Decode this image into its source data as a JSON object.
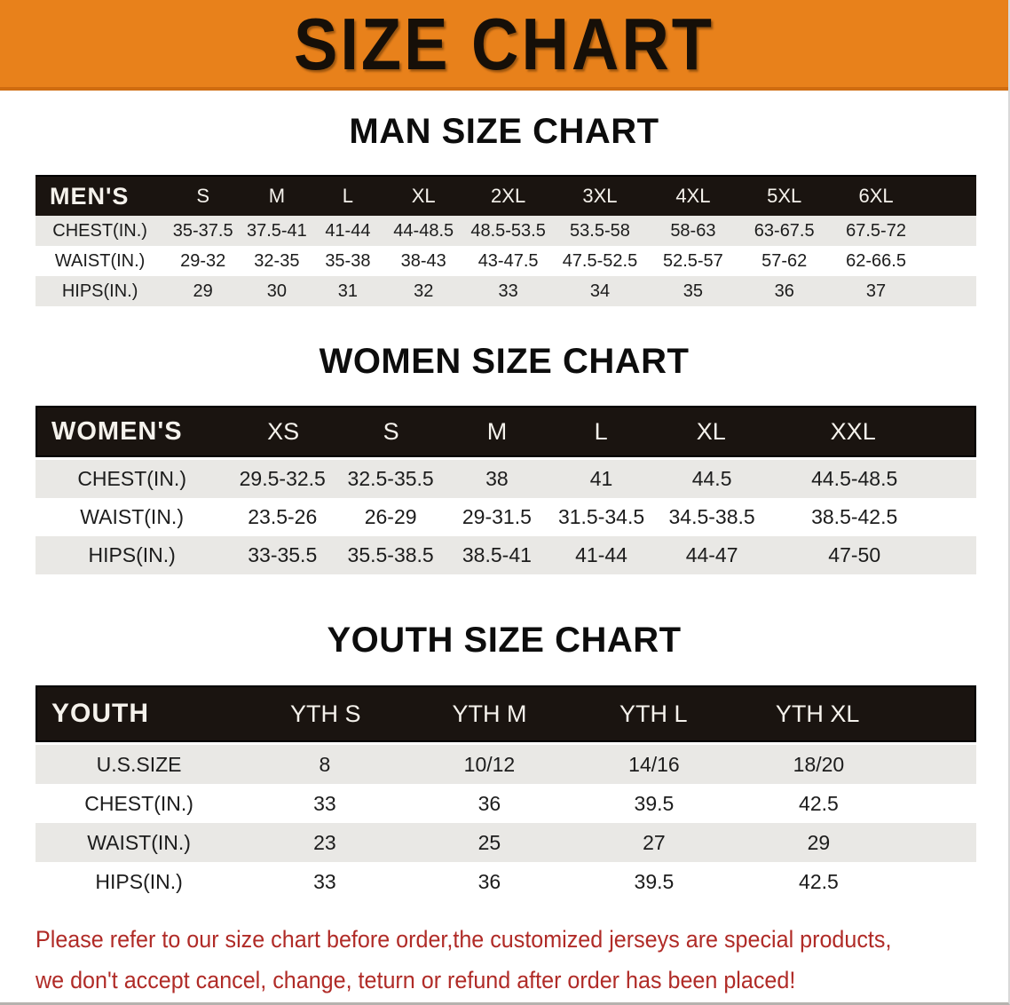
{
  "banner": {
    "title": "SIZE CHART"
  },
  "colors": {
    "banner_orange": "#e8811b",
    "header_black": "#1a1410",
    "stripe_grey": "#e9e8e5",
    "disclaimer_red": "#b02b27"
  },
  "men": {
    "heading": "MAN SIZE CHART",
    "header_label": "MEN'S",
    "columns": [
      "S",
      "M",
      "L",
      "XL",
      "2XL",
      "3XL",
      "4XL",
      "5XL",
      "6XL"
    ],
    "rows": [
      {
        "label": "CHEST(IN.)",
        "values": [
          "35-37.5",
          "37.5-41",
          "41-44",
          "44-48.5",
          "48.5-53.5",
          "53.5-58",
          "58-63",
          "63-67.5",
          "67.5-72"
        ]
      },
      {
        "label": "WAIST(IN.)",
        "values": [
          "29-32",
          "32-35",
          "35-38",
          "38-43",
          "43-47.5",
          "47.5-52.5",
          "52.5-57",
          "57-62",
          "62-66.5"
        ]
      },
      {
        "label": "HIPS(IN.)",
        "values": [
          "29",
          "30",
          "31",
          "32",
          "33",
          "34",
          "35",
          "36",
          "37"
        ]
      }
    ]
  },
  "women": {
    "heading": "WOMEN SIZE CHART",
    "header_label": "WOMEN'S",
    "columns": [
      "XS",
      "S",
      "M",
      "L",
      "XL",
      "XXL"
    ],
    "rows": [
      {
        "label": "CHEST(IN.)",
        "values": [
          "29.5-32.5",
          "32.5-35.5",
          "38",
          "41",
          "44.5",
          "44.5-48.5"
        ]
      },
      {
        "label": "WAIST(IN.)",
        "values": [
          "23.5-26",
          "26-29",
          "29-31.5",
          "31.5-34.5",
          "34.5-38.5",
          "38.5-42.5"
        ]
      },
      {
        "label": "HIPS(IN.)",
        "values": [
          "33-35.5",
          "35.5-38.5",
          "38.5-41",
          "41-44",
          "44-47",
          "47-50"
        ]
      }
    ]
  },
  "youth": {
    "heading": "YOUTH SIZE CHART",
    "header_label": "YOUTH",
    "columns": [
      "YTH S",
      "YTH M",
      "YTH L",
      "YTH XL"
    ],
    "rows": [
      {
        "label": "U.S.SIZE",
        "values": [
          "8",
          "10/12",
          "14/16",
          "18/20"
        ]
      },
      {
        "label": "CHEST(IN.)",
        "values": [
          "33",
          "36",
          "39.5",
          "42.5"
        ]
      },
      {
        "label": "WAIST(IN.)",
        "values": [
          "23",
          "25",
          "27",
          "29"
        ]
      },
      {
        "label": "HIPS(IN.)",
        "values": [
          "33",
          "36",
          "39.5",
          "42.5"
        ]
      }
    ]
  },
  "disclaimer": {
    "line1": "Please refer to our size chart before order,the customized jerseys are special products,",
    "line2": "we don't accept cancel, change, teturn or refund after order has been placed!"
  }
}
